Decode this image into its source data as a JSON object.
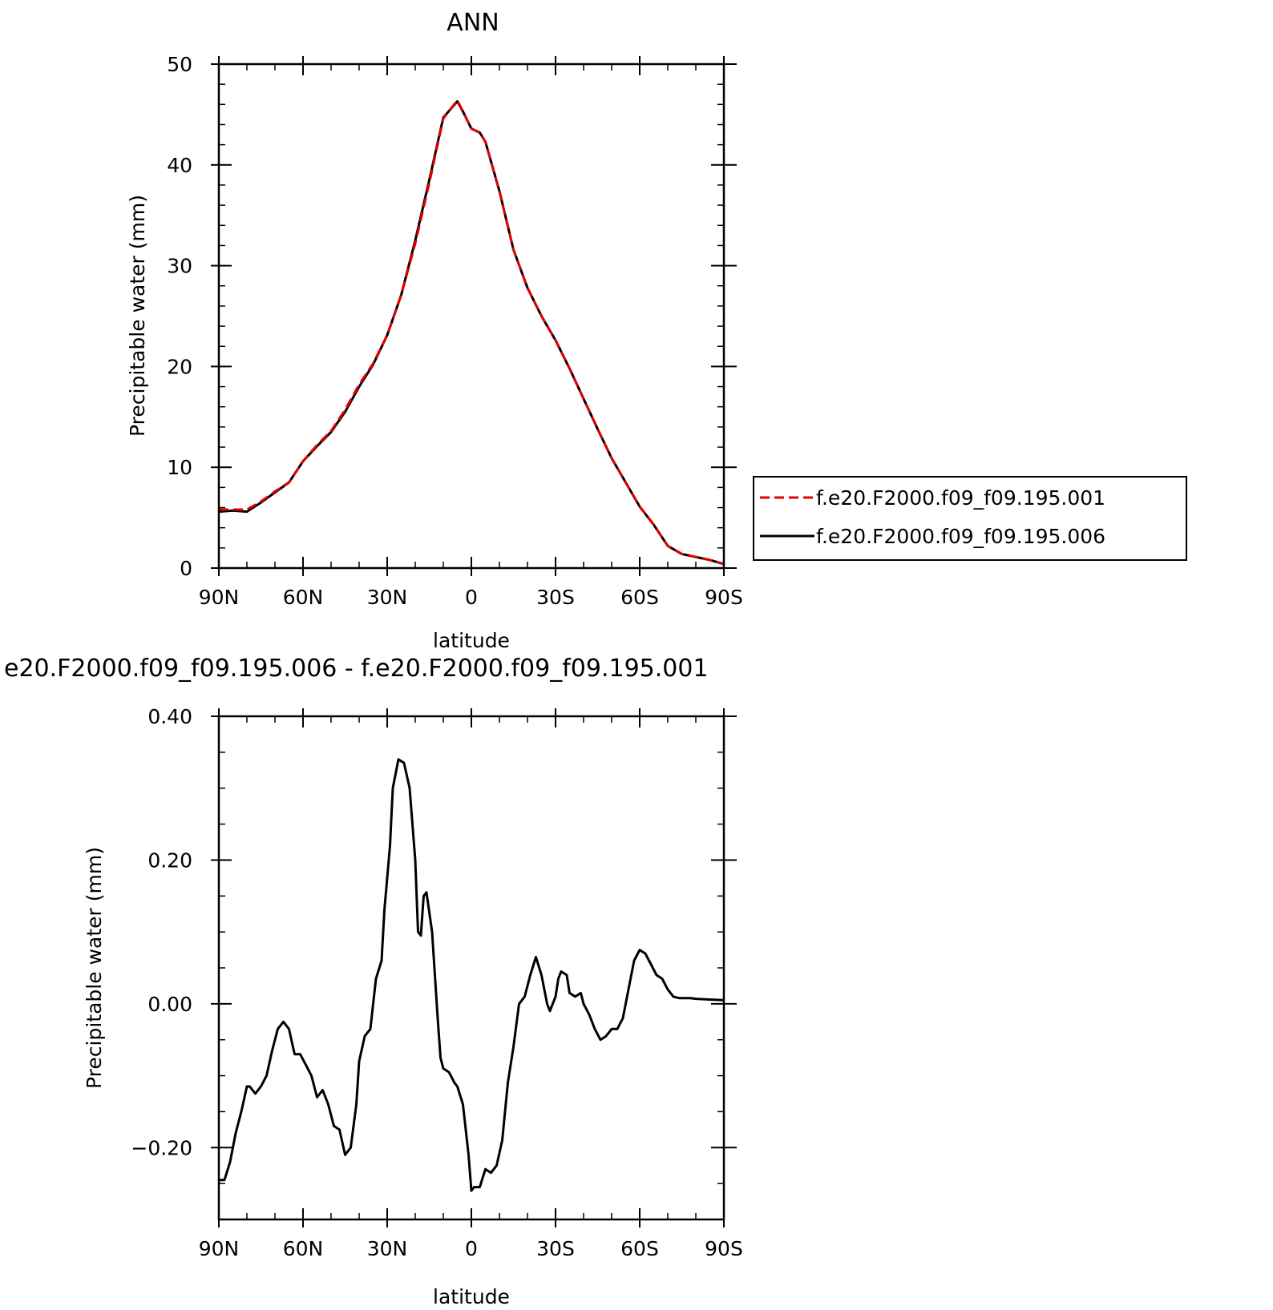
{
  "chart_data": [
    {
      "type": "line",
      "title": "ANN",
      "xlabel": "latitude",
      "ylabel": "Precipitable water (mm)",
      "xlim": [
        90,
        -90
      ],
      "ylim": [
        0,
        50
      ],
      "x_ticks": [
        {
          "value": 90,
          "label": "90N"
        },
        {
          "value": 60,
          "label": "60N"
        },
        {
          "value": 30,
          "label": "30N"
        },
        {
          "value": 0,
          "label": "0"
        },
        {
          "value": -30,
          "label": "30S"
        },
        {
          "value": -60,
          "label": "60S"
        },
        {
          "value": -90,
          "label": "90S"
        }
      ],
      "y_ticks": [
        {
          "value": 0,
          "label": "0"
        },
        {
          "value": 10,
          "label": "10"
        },
        {
          "value": 20,
          "label": "20"
        },
        {
          "value": 30,
          "label": "30"
        },
        {
          "value": 40,
          "label": "40"
        },
        {
          "value": 50,
          "label": "50"
        }
      ],
      "legend": {
        "placement": "right"
      },
      "series": [
        {
          "name": "f.e20.F2000.f09_f09.195.001",
          "color": "#e00000",
          "dash": "dashed",
          "x": [
            90,
            85,
            80,
            75,
            70,
            65,
            60,
            55,
            50,
            45,
            40,
            35,
            30,
            25,
            20,
            15,
            10,
            5,
            3,
            0,
            -3,
            -5,
            -10,
            -15,
            -20,
            -25,
            -30,
            -35,
            -40,
            -45,
            -50,
            -55,
            -60,
            -65,
            -70,
            -75,
            -80,
            -85,
            -90
          ],
          "values": [
            5.8,
            5.8,
            5.8,
            6.6,
            7.6,
            8.5,
            10.6,
            12.2,
            13.6,
            15.7,
            18.2,
            20.3,
            23.1,
            27.1,
            32.2,
            38.2,
            44.6,
            46.4,
            45.3,
            43.6,
            43.2,
            42.3,
            37.4,
            31.6,
            27.8,
            25.0,
            22.6,
            19.8,
            16.8,
            13.8,
            10.9,
            8.5,
            6.1,
            4.3,
            2.2,
            1.4,
            1.1,
            0.8,
            0.4
          ]
        },
        {
          "name": "f.e20.F2000.f09_f09.195.006",
          "color": "#000000",
          "dash": "solid",
          "x": [
            90,
            85,
            80,
            75,
            70,
            65,
            60,
            55,
            50,
            45,
            40,
            35,
            30,
            25,
            20,
            15,
            10,
            5,
            3,
            0,
            -3,
            -5,
            -10,
            -15,
            -20,
            -25,
            -30,
            -35,
            -40,
            -45,
            -50,
            -55,
            -60,
            -65,
            -70,
            -75,
            -80,
            -85,
            -90
          ],
          "values": [
            5.6,
            5.7,
            5.6,
            6.5,
            7.5,
            8.5,
            10.6,
            12.1,
            13.5,
            15.5,
            18.0,
            20.2,
            23.1,
            27.1,
            32.5,
            38.5,
            44.7,
            46.3,
            45.3,
            43.6,
            43.2,
            42.3,
            37.4,
            31.6,
            27.8,
            25.0,
            22.6,
            19.8,
            16.8,
            13.8,
            10.9,
            8.5,
            6.1,
            4.3,
            2.2,
            1.4,
            1.1,
            0.8,
            0.4
          ]
        }
      ]
    },
    {
      "type": "line",
      "title": "e20.F2000.f09_f09.195.006 - f.e20.F2000.f09_f09.195.001",
      "xlabel": "latitude",
      "ylabel": "Precipitable water (mm)",
      "xlim": [
        90,
        -90
      ],
      "ylim": [
        -0.3,
        0.4
      ],
      "x_ticks": [
        {
          "value": 90,
          "label": "90N"
        },
        {
          "value": 60,
          "label": "60N"
        },
        {
          "value": 30,
          "label": "30N"
        },
        {
          "value": 0,
          "label": "0"
        },
        {
          "value": -30,
          "label": "30S"
        },
        {
          "value": -60,
          "label": "60S"
        },
        {
          "value": -90,
          "label": "90S"
        }
      ],
      "y_ticks": [
        {
          "value": 0.4,
          "label": "0.40"
        },
        {
          "value": 0.2,
          "label": "0.20"
        },
        {
          "value": 0.0,
          "label": "0.00"
        },
        {
          "value": -0.2,
          "label": "−0.20"
        }
      ],
      "series": [
        {
          "color": "#000000",
          "x": [
            90,
            88,
            86,
            84,
            82,
            80,
            79,
            77,
            75,
            73,
            71,
            69,
            67,
            65,
            63,
            61,
            59,
            57,
            55,
            53,
            51,
            49,
            47,
            45,
            43,
            41,
            40,
            38,
            36,
            34,
            32,
            31,
            29,
            28,
            26,
            24,
            22,
            20,
            19,
            18,
            17,
            16,
            14,
            12,
            11,
            10,
            8,
            6,
            5,
            3,
            1,
            0,
            -1,
            -3,
            -5,
            -7,
            -9,
            -11,
            -13,
            -15,
            -17,
            -19,
            -21,
            -23,
            -25,
            -27,
            -28,
            -30,
            -31,
            -32,
            -34,
            -35,
            -37,
            -39,
            -40,
            -42,
            -44,
            -46,
            -48,
            -50,
            -52,
            -54,
            -56,
            -58,
            -60,
            -62,
            -64,
            -66,
            -68,
            -70,
            -72,
            -74,
            -76,
            -78,
            -80,
            -90
          ],
          "values": [
            -0.245,
            -0.245,
            -0.22,
            -0.18,
            -0.15,
            -0.115,
            -0.115,
            -0.125,
            -0.115,
            -0.1,
            -0.065,
            -0.035,
            -0.025,
            -0.035,
            -0.07,
            -0.07,
            -0.085,
            -0.1,
            -0.13,
            -0.12,
            -0.14,
            -0.17,
            -0.175,
            -0.21,
            -0.2,
            -0.14,
            -0.08,
            -0.045,
            -0.035,
            0.035,
            0.06,
            0.13,
            0.22,
            0.3,
            0.34,
            0.335,
            0.3,
            0.2,
            0.1,
            0.095,
            0.15,
            0.155,
            0.1,
            -0.02,
            -0.075,
            -0.09,
            -0.095,
            -0.11,
            -0.115,
            -0.14,
            -0.21,
            -0.26,
            -0.255,
            -0.255,
            -0.23,
            -0.235,
            -0.225,
            -0.19,
            -0.11,
            -0.06,
            0.0,
            0.01,
            0.04,
            0.065,
            0.04,
            0.0,
            -0.01,
            0.01,
            0.035,
            0.045,
            0.04,
            0.015,
            0.01,
            0.015,
            0.0,
            -0.015,
            -0.035,
            -0.05,
            -0.045,
            -0.035,
            -0.035,
            -0.02,
            0.02,
            0.06,
            0.075,
            0.07,
            0.055,
            0.04,
            0.035,
            0.02,
            0.01,
            0.008,
            0.008,
            0.008,
            0.007,
            0.005
          ]
        }
      ]
    }
  ]
}
